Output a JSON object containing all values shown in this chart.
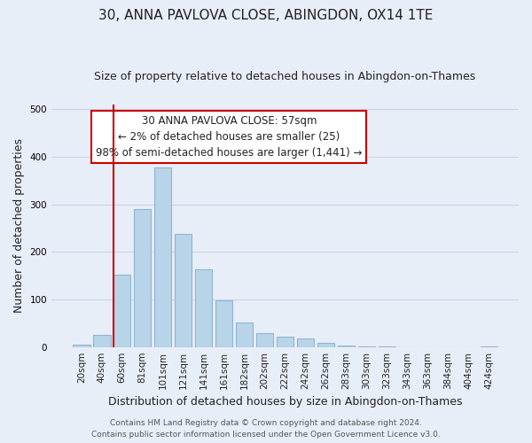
{
  "title": "30, ANNA PAVLOVA CLOSE, ABINGDON, OX14 1TE",
  "subtitle": "Size of property relative to detached houses in Abingdon-on-Thames",
  "xlabel": "Distribution of detached houses by size in Abingdon-on-Thames",
  "ylabel": "Number of detached properties",
  "bin_labels": [
    "20sqm",
    "40sqm",
    "60sqm",
    "81sqm",
    "101sqm",
    "121sqm",
    "141sqm",
    "161sqm",
    "182sqm",
    "202sqm",
    "222sqm",
    "242sqm",
    "262sqm",
    "283sqm",
    "303sqm",
    "323sqm",
    "343sqm",
    "363sqm",
    "384sqm",
    "404sqm",
    "424sqm"
  ],
  "bar_values": [
    5,
    26,
    153,
    290,
    378,
    237,
    163,
    99,
    52,
    30,
    22,
    18,
    9,
    3,
    1,
    1,
    0,
    0,
    0,
    0,
    2
  ],
  "bar_color": "#b8d4e8",
  "bar_edge_color": "#90b4d0",
  "grid_color": "#c8d4e8",
  "background_color": "#e8eef8",
  "vline_color": "#cc0000",
  "ann_line1": "30 ANNA PAVLOVA CLOSE: 57sqm",
  "ann_line2": "← 2% of detached houses are smaller (25)",
  "ann_line3": "98% of semi-detached houses are larger (1,441) →",
  "footer_line1": "Contains HM Land Registry data © Crown copyright and database right 2024.",
  "footer_line2": "Contains public sector information licensed under the Open Government Licence v3.0.",
  "ylim": [
    0,
    510
  ],
  "title_fontsize": 11,
  "subtitle_fontsize": 9,
  "xlabel_fontsize": 9,
  "ylabel_fontsize": 9,
  "tick_fontsize": 7.5,
  "ann_fontsize": 8.5,
  "footer_fontsize": 6.5
}
